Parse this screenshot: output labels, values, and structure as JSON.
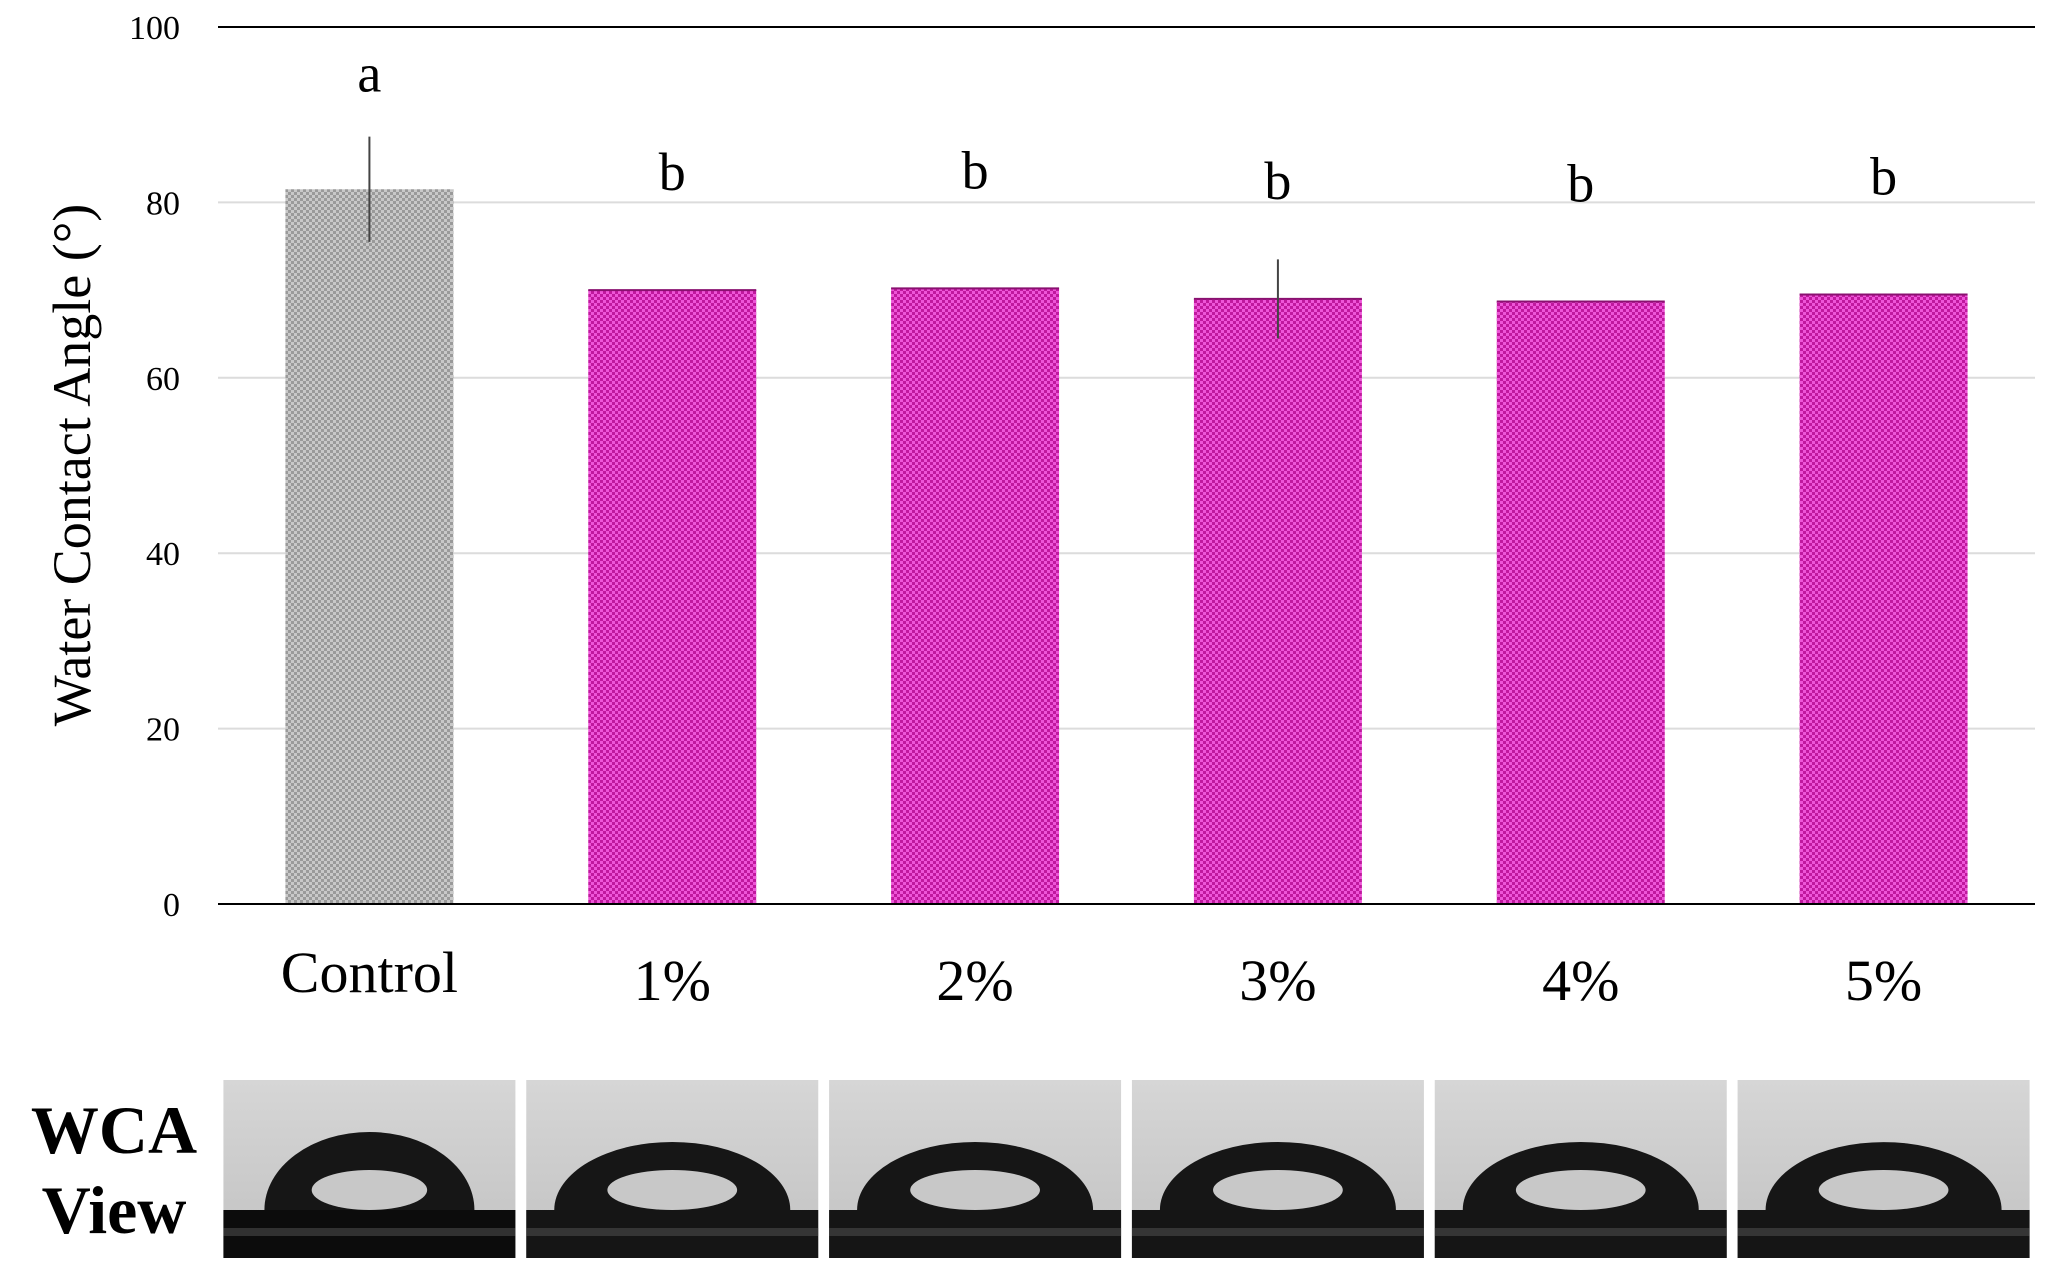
{
  "chart_data": {
    "type": "bar",
    "categories": [
      "Control",
      "1%",
      "2%",
      "3%",
      "4%",
      "5%"
    ],
    "values": [
      81.5,
      70,
      70.2,
      69,
      68.7,
      69.5
    ],
    "error": [
      6,
      0,
      0,
      4.5,
      0,
      0
    ],
    "letters": [
      "a",
      "b",
      "b",
      "b",
      "b",
      "b"
    ],
    "ylabel": "Water Contact Angle (°)",
    "ylim": [
      0,
      100
    ],
    "yticks": [
      0,
      20,
      40,
      60,
      80,
      100
    ],
    "grid": true,
    "colors": {
      "control": "#b9b9b9",
      "treated": "#e033c8",
      "grid": "#dcdcdc",
      "axis": "#000000",
      "error_bar": "#444444"
    }
  },
  "wca_panel": {
    "label_line1": "WCA",
    "label_line2": "View"
  }
}
